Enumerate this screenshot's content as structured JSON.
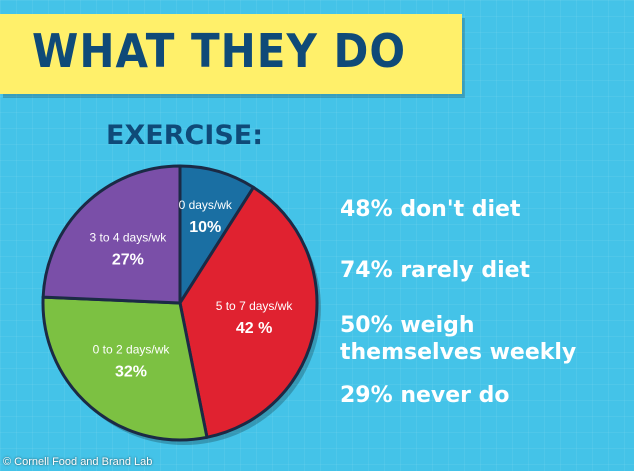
{
  "banner": {
    "title": "WHAT THEY DO"
  },
  "credit": "© Cornell Food and Brand Lab",
  "chart_data": {
    "type": "pie",
    "title": "EXERCISE:",
    "slices": [
      {
        "label": "0 days/wk",
        "value": 10,
        "value_label": "10%",
        "color": "#1a6fa3"
      },
      {
        "label": "5 to 7 days/wk",
        "value": 42,
        "value_label": "42 %",
        "color": "#e02230"
      },
      {
        "label": "0 to 2 days/wk",
        "value": 32,
        "value_label": "32%",
        "color": "#7cc142"
      },
      {
        "label": "3 to 4 days/wk",
        "value": 27,
        "value_label": "27%",
        "color": "#7a4fa8"
      }
    ],
    "start": "top",
    "direction": "clockwise"
  },
  "stats": [
    "48% don't diet",
    "74% rarely diet",
    "50% weigh",
    "themselves weekly",
    "29% never do"
  ]
}
